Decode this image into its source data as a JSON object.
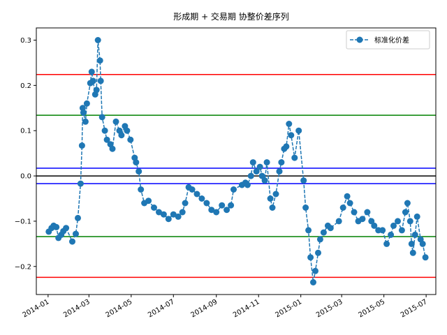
{
  "chart_data": {
    "type": "line",
    "title": "形成期 + 交易期 协整价差序列",
    "xlabel": "",
    "ylabel": "",
    "xlim": [
      "2013-12-15",
      "2015-07-15"
    ],
    "ylim": [
      -0.262,
      0.327
    ],
    "grid": false,
    "legend_position": "top-right",
    "x_ticks": [
      "2014-01",
      "2014-03",
      "2014-05",
      "2014-07",
      "2014-09",
      "2014-11",
      "2015-01",
      "2015-03",
      "2015-05",
      "2015-07"
    ],
    "x_tick_dates": [
      "2014-01-01",
      "2014-03-01",
      "2014-05-01",
      "2014-07-01",
      "2014-09-01",
      "2014-11-01",
      "2015-01-01",
      "2015-03-01",
      "2015-05-01",
      "2015-07-01"
    ],
    "y_ticks": [
      -0.2,
      -0.1,
      0.0,
      0.1,
      0.2,
      0.3
    ],
    "y_tick_labels": [
      "−0.2",
      "−0.1",
      "0.0",
      "0.1",
      "0.2",
      "0.3"
    ],
    "hlines": [
      {
        "y": 0.0,
        "color": "#000000"
      },
      {
        "y": 0.017,
        "color": "#0000ff"
      },
      {
        "y": -0.017,
        "color": "#0000ff"
      },
      {
        "y": 0.134,
        "color": "#008000"
      },
      {
        "y": -0.134,
        "color": "#008000"
      },
      {
        "y": 0.224,
        "color": "#ff0000"
      },
      {
        "y": -0.224,
        "color": "#ff0000"
      }
    ],
    "series": [
      {
        "name": "标准化价差",
        "color": "#1f77b4",
        "style": "dashed-with-circles",
        "x": [
          "2014-01-02",
          "2014-01-06",
          "2014-01-09",
          "2014-01-13",
          "2014-01-16",
          "2014-01-20",
          "2014-01-23",
          "2014-01-27",
          "2014-02-05",
          "2014-02-10",
          "2014-02-13",
          "2014-02-17",
          "2014-02-19",
          "2014-02-20",
          "2014-02-21",
          "2014-02-24",
          "2014-02-26",
          "2014-03-03",
          "2014-03-05",
          "2014-03-07",
          "2014-03-10",
          "2014-03-12",
          "2014-03-14",
          "2014-03-17",
          "2014-03-18",
          "2014-03-20",
          "2014-03-24",
          "2014-03-27",
          "2014-04-01",
          "2014-04-04",
          "2014-04-09",
          "2014-04-14",
          "2014-04-17",
          "2014-04-22",
          "2014-04-25",
          "2014-04-30",
          "2014-05-06",
          "2014-05-08",
          "2014-05-12",
          "2014-05-15",
          "2014-05-20",
          "2014-05-26",
          "2014-06-03",
          "2014-06-10",
          "2014-06-17",
          "2014-06-24",
          "2014-07-01",
          "2014-07-08",
          "2014-07-14",
          "2014-07-18",
          "2014-07-23",
          "2014-07-28",
          "2014-08-04",
          "2014-08-11",
          "2014-08-18",
          "2014-08-25",
          "2014-09-01",
          "2014-09-09",
          "2014-09-16",
          "2014-09-22",
          "2014-09-26",
          "2014-10-08",
          "2014-10-13",
          "2014-10-16",
          "2014-10-21",
          "2014-10-24",
          "2014-10-29",
          "2014-11-03",
          "2014-11-06",
          "2014-11-10",
          "2014-11-13",
          "2014-11-18",
          "2014-11-21",
          "2014-11-26",
          "2014-12-01",
          "2014-12-04",
          "2014-12-08",
          "2014-12-11",
          "2014-12-15",
          "2014-12-18",
          "2014-12-23",
          "2014-12-29",
          "2015-01-05",
          "2015-01-08",
          "2015-01-12",
          "2015-01-15",
          "2015-01-19",
          "2015-01-22",
          "2015-01-26",
          "2015-01-29",
          "2015-02-03",
          "2015-02-09",
          "2015-02-13",
          "2015-02-25",
          "2015-03-03",
          "2015-03-09",
          "2015-03-13",
          "2015-03-19",
          "2015-03-25",
          "2015-03-31",
          "2015-04-07",
          "2015-04-13",
          "2015-04-17",
          "2015-04-23",
          "2015-04-29",
          "2015-05-05",
          "2015-05-11",
          "2015-05-15",
          "2015-05-21",
          "2015-05-27",
          "2015-06-01",
          "2015-06-04",
          "2015-06-08",
          "2015-06-10",
          "2015-06-12",
          "2015-06-15",
          "2015-06-18",
          "2015-06-23",
          "2015-06-26",
          "2015-06-30"
        ],
        "y": [
          -0.123,
          -0.115,
          -0.11,
          -0.113,
          -0.137,
          -0.13,
          -0.122,
          -0.115,
          -0.145,
          -0.128,
          -0.093,
          -0.017,
          0.067,
          0.15,
          0.14,
          0.12,
          0.16,
          0.205,
          0.23,
          0.21,
          0.18,
          0.19,
          0.3,
          0.255,
          0.21,
          0.13,
          0.1,
          0.08,
          0.07,
          0.06,
          0.12,
          0.1,
          0.09,
          0.11,
          0.1,
          0.08,
          0.04,
          0.03,
          0.01,
          -0.03,
          -0.06,
          -0.055,
          -0.07,
          -0.08,
          -0.085,
          -0.095,
          -0.085,
          -0.09,
          -0.08,
          -0.06,
          -0.025,
          -0.03,
          -0.04,
          -0.05,
          -0.06,
          -0.075,
          -0.08,
          -0.065,
          -0.075,
          -0.065,
          -0.03,
          -0.02,
          -0.015,
          -0.02,
          0.0,
          0.03,
          0.01,
          0.02,
          0.0,
          -0.01,
          0.03,
          -0.05,
          -0.07,
          -0.04,
          0.01,
          0.03,
          0.06,
          0.065,
          0.115,
          0.09,
          0.04,
          0.1,
          -0.01,
          -0.07,
          -0.12,
          -0.18,
          -0.235,
          -0.21,
          -0.17,
          -0.14,
          -0.125,
          -0.11,
          -0.115,
          -0.1,
          -0.07,
          -0.045,
          -0.06,
          -0.08,
          -0.1,
          -0.095,
          -0.08,
          -0.1,
          -0.11,
          -0.12,
          -0.12,
          -0.15,
          -0.13,
          -0.11,
          -0.1,
          -0.12,
          -0.08,
          -0.06,
          -0.1,
          -0.15,
          -0.17,
          -0.13,
          -0.09,
          -0.14,
          -0.15,
          -0.18
        ]
      }
    ]
  }
}
